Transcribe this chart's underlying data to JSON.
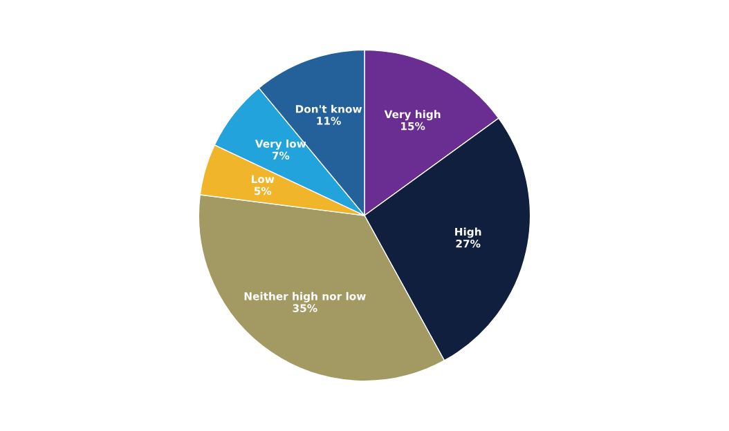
{
  "chart_data": {
    "type": "pie",
    "categories": [
      "Very high",
      "High",
      "Neither high nor low",
      "Low",
      "Very low",
      "Don't know"
    ],
    "values": [
      15,
      27,
      35,
      5,
      7,
      11
    ],
    "colors": [
      "#6a2d91",
      "#0f1f3d",
      "#a39a63",
      "#f0b52a",
      "#22a3dc",
      "#24619a"
    ],
    "value_labels": [
      "15%",
      "27%",
      "35%",
      "5%",
      "7%",
      "11%"
    ],
    "legend": false
  }
}
